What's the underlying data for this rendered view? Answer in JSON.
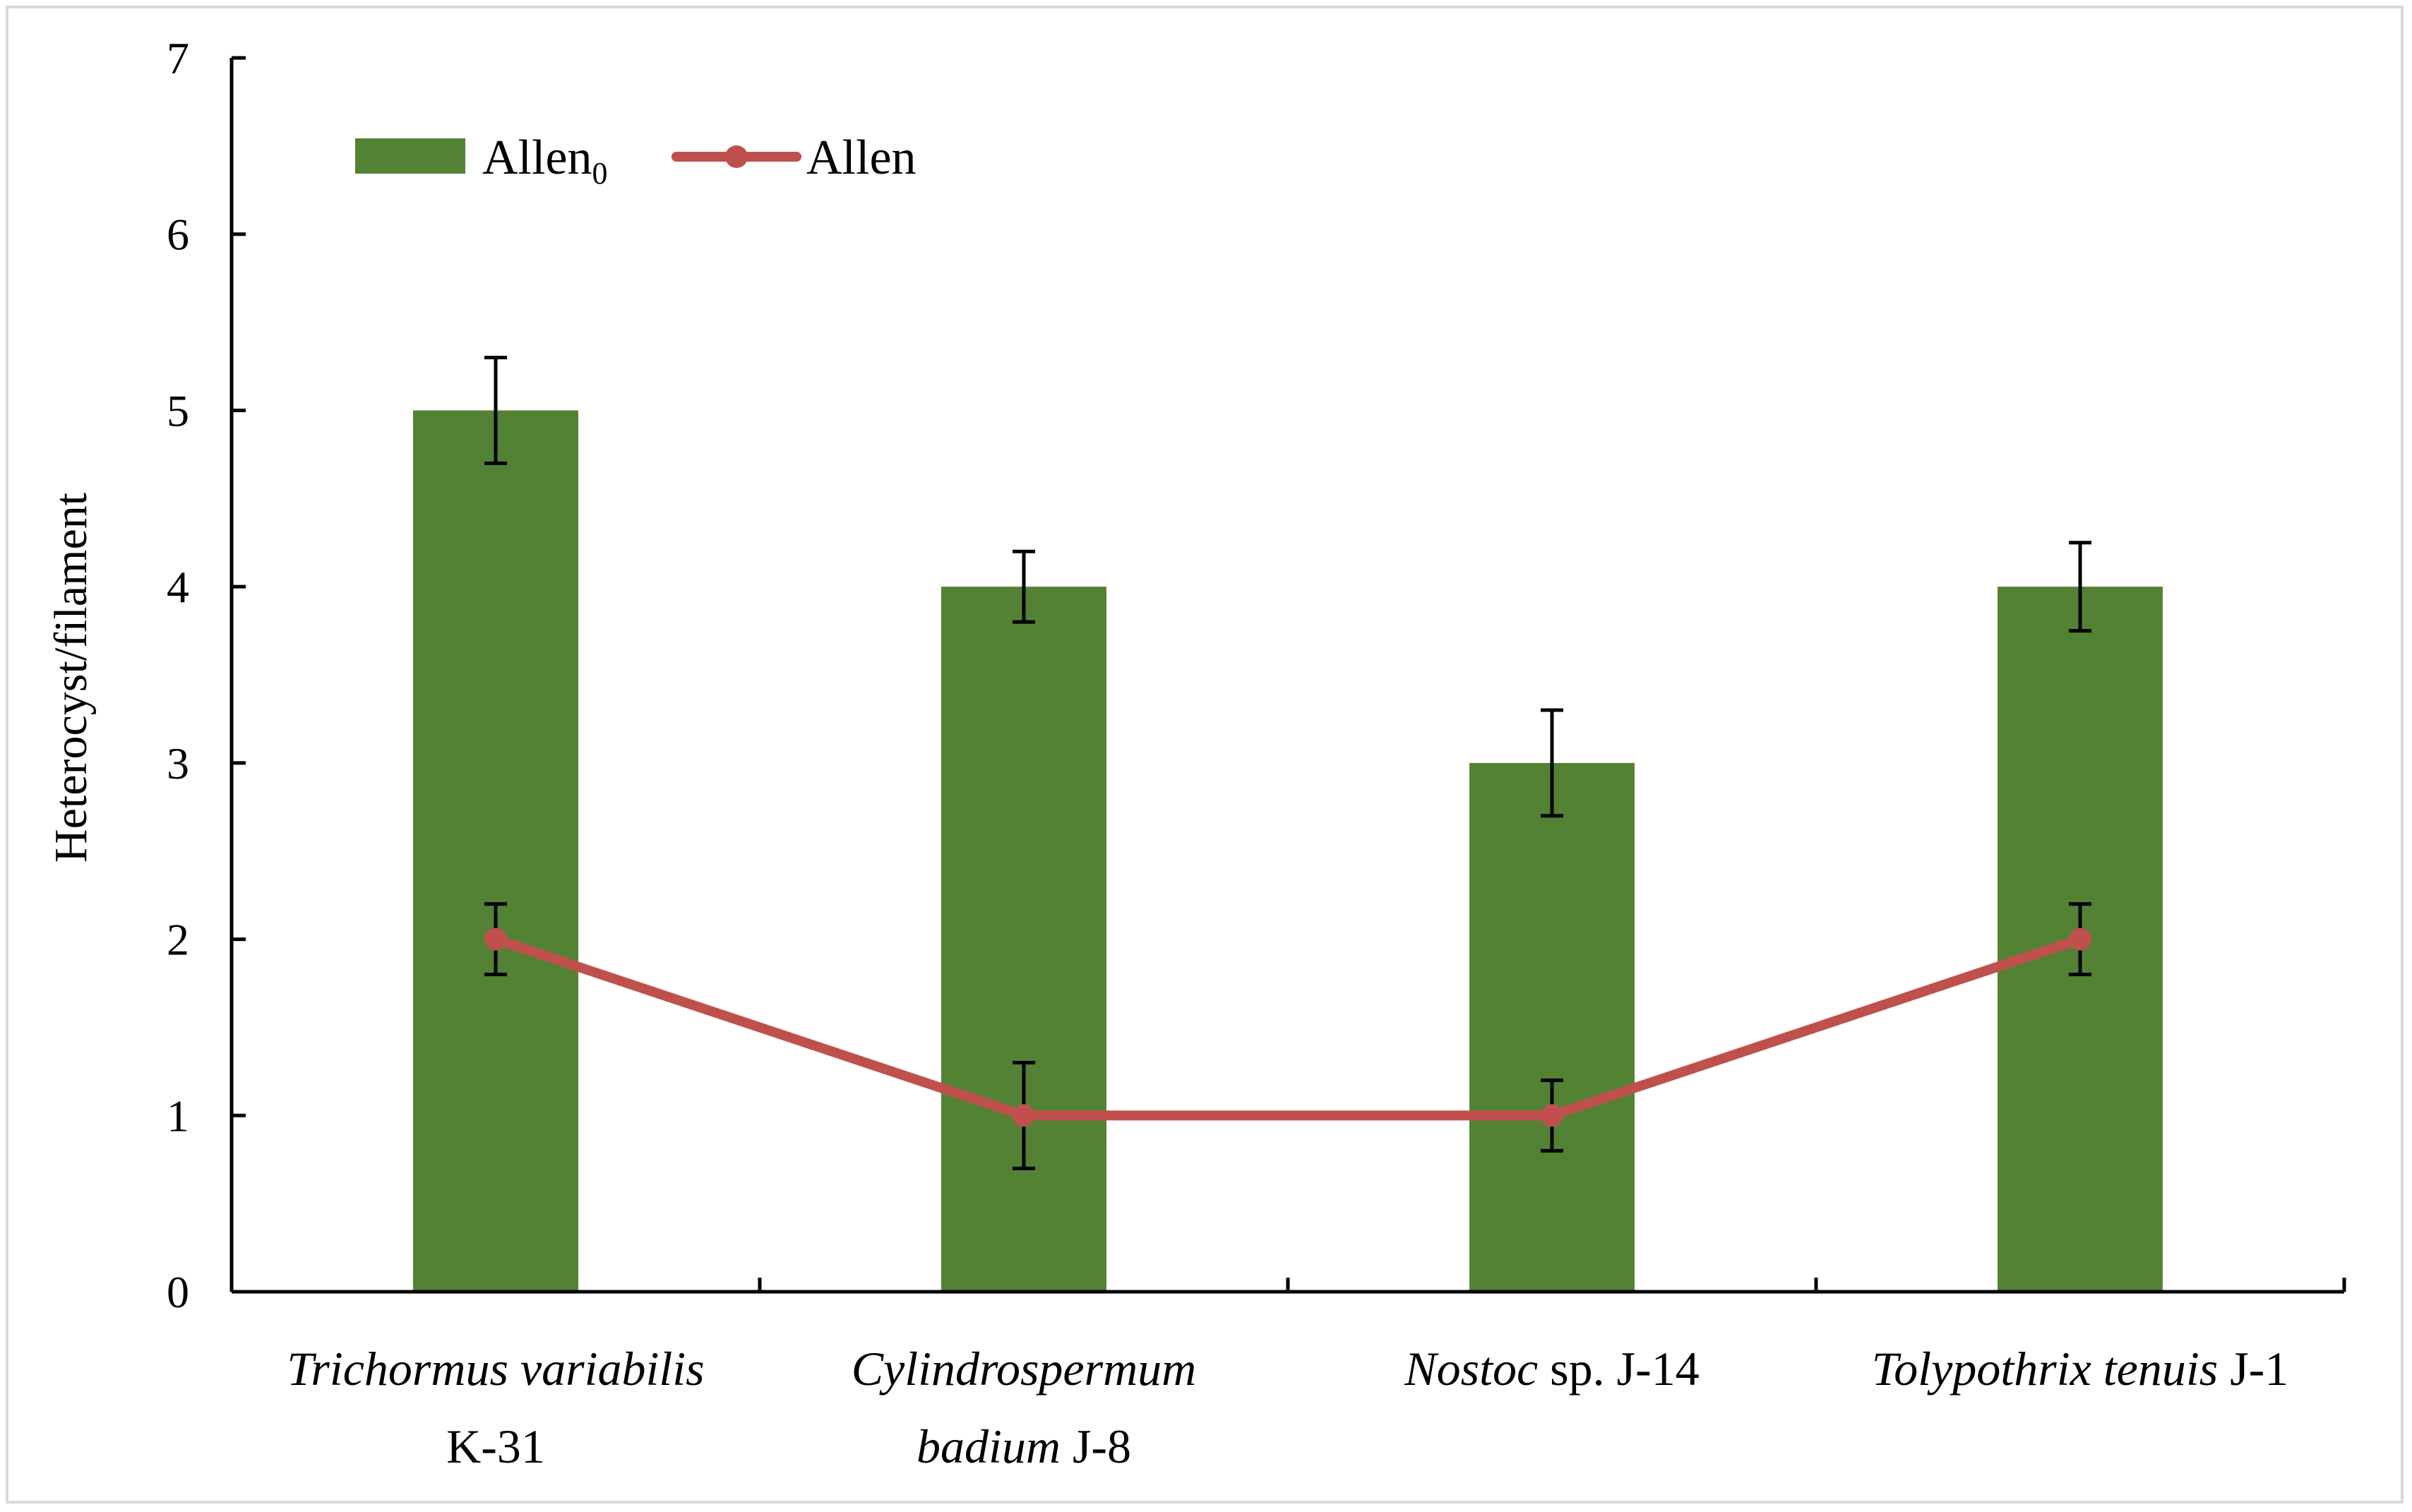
{
  "chart_data": {
    "type": "bar",
    "ylabel": "Heterocyst/filament",
    "ylim": [
      0,
      7
    ],
    "yticks": [
      0,
      1,
      2,
      3,
      4,
      5,
      6,
      7
    ],
    "grid": false,
    "legend_position": "top-left",
    "categories": [
      {
        "lines": [
          [
            {
              "text": "Trichormus variabilis",
              "italic": true
            }
          ],
          [
            {
              "text": "K-31",
              "italic": false
            }
          ]
        ]
      },
      {
        "lines": [
          [
            {
              "text": "Cylindrospermum",
              "italic": true
            }
          ],
          [
            {
              "text": "badium",
              "italic": true
            },
            {
              "text": " J-8",
              "italic": false
            }
          ]
        ]
      },
      {
        "lines": [
          [
            {
              "text": "Nostoc",
              "italic": true
            },
            {
              "text": " sp. J-14",
              "italic": false
            }
          ]
        ]
      },
      {
        "lines": [
          [
            {
              "text": "Tolypothrix tenuis",
              "italic": true
            },
            {
              "text": " J-1",
              "italic": false
            }
          ]
        ]
      }
    ],
    "series": [
      {
        "name": "Allen",
        "name_subscript": "0",
        "kind": "bar",
        "color": "#548235",
        "values": [
          5,
          4,
          3,
          4
        ],
        "errors": [
          0.3,
          0.2,
          0.3,
          0.25
        ]
      },
      {
        "name": "Allen",
        "name_subscript": "",
        "kind": "line",
        "color": "#c0504d",
        "values": [
          2,
          1,
          1,
          2
        ],
        "errors": [
          0.2,
          0.3,
          0.2,
          0.2
        ]
      }
    ]
  }
}
